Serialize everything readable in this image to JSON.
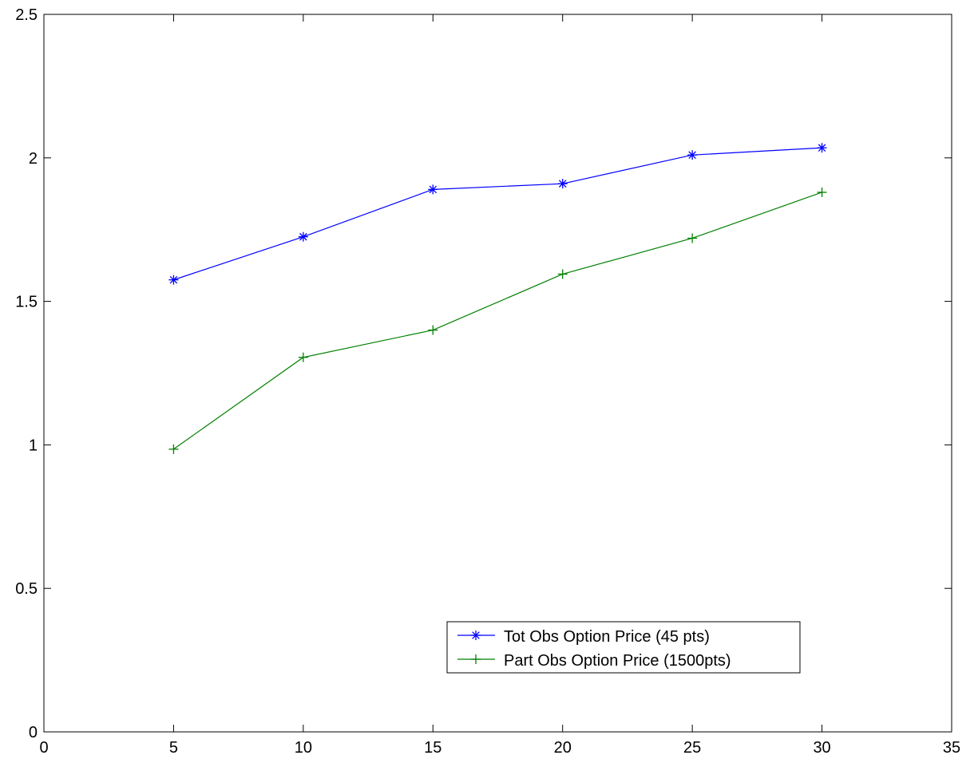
{
  "chart_data": {
    "type": "line",
    "title": "",
    "xlabel": "",
    "ylabel": "",
    "xlim": [
      0,
      35
    ],
    "ylim": [
      0,
      2.5
    ],
    "xticks": [
      0,
      5,
      10,
      15,
      20,
      25,
      30,
      35
    ],
    "yticks": [
      0,
      0.5,
      1,
      1.5,
      2,
      2.5
    ],
    "xtick_labels": [
      "0",
      "5",
      "10",
      "15",
      "20",
      "25",
      "30",
      "35"
    ],
    "ytick_labels": [
      "0",
      "0.5",
      "1",
      "1.5",
      "2",
      "2.5"
    ],
    "grid": false,
    "legend_position": "bottom-center",
    "x": [
      5,
      10,
      15,
      20,
      25,
      30
    ],
    "series": [
      {
        "name": "Tot Obs Option Price (45 pts)",
        "values": [
          1.575,
          1.725,
          1.89,
          1.91,
          2.01,
          2.035
        ],
        "color": "#0000ff",
        "marker": "asterisk"
      },
      {
        "name": "Part Obs Option Price (1500pts)",
        "values": [
          0.985,
          1.305,
          1.4,
          1.595,
          1.72,
          1.88
        ],
        "color": "#008000",
        "marker": "plus"
      }
    ]
  }
}
